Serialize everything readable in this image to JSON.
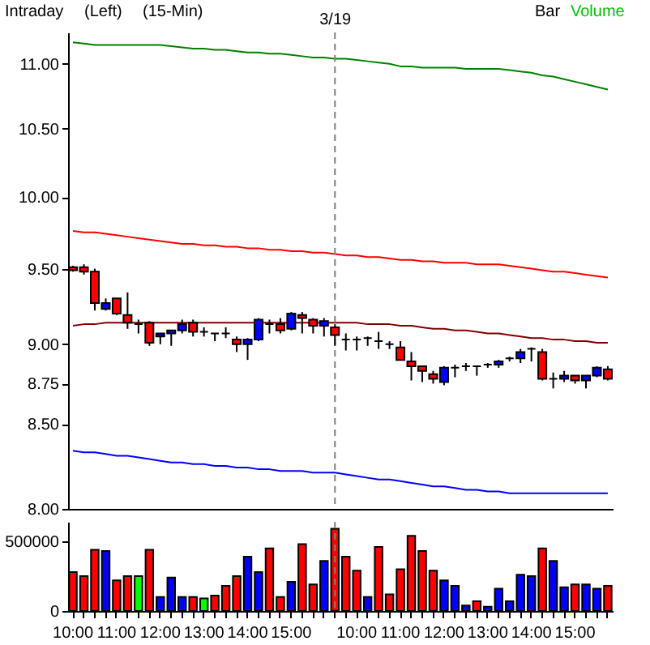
{
  "chart_data": [
    {
      "type": "candlestick",
      "log": true,
      "tick_labels": "y",
      "categories": [
        "10:00",
        null,
        null,
        null,
        "11:00",
        null,
        null,
        null,
        "12:00",
        null,
        null,
        null,
        "13:00",
        null,
        null,
        null,
        "14:00",
        null,
        null,
        null,
        "15:00",
        null,
        null,
        null,
        "3/19",
        null,
        "10:00",
        null,
        null,
        null,
        "11:00",
        null,
        null,
        null,
        "12:00",
        null,
        null,
        null,
        "13:00",
        null,
        null,
        null,
        "14:00",
        null,
        null,
        null,
        "15:00",
        null,
        null,
        null
      ],
      "ohlc": [
        [
          9.51,
          9.52,
          9.48,
          9.49
        ],
        [
          9.51,
          9.53,
          9.46,
          9.48
        ],
        [
          9.48,
          9.5,
          9.22,
          9.27
        ],
        [
          9.23,
          9.3,
          9.22,
          9.27
        ],
        [
          9.3,
          9.3,
          9.19,
          9.2
        ],
        [
          9.19,
          9.34,
          9.1,
          9.14
        ],
        [
          9.13,
          9.16,
          9.07,
          9.13
        ],
        [
          9.14,
          9.15,
          8.99,
          9.01
        ],
        [
          9.05,
          9.07,
          9.0,
          9.07
        ],
        [
          9.07,
          9.09,
          8.99,
          9.09
        ],
        [
          9.09,
          9.16,
          9.07,
          9.13
        ],
        [
          9.14,
          9.16,
          9.05,
          9.08
        ],
        [
          9.08,
          9.11,
          9.05,
          9.08
        ],
        [
          9.07,
          9.07,
          9.02,
          9.07
        ],
        [
          9.07,
          9.11,
          9.04,
          9.07
        ],
        [
          9.03,
          9.05,
          8.95,
          9.0
        ],
        [
          9.0,
          9.04,
          8.9,
          9.03
        ],
        [
          9.03,
          9.17,
          9.02,
          9.16
        ],
        [
          9.13,
          9.16,
          9.07,
          9.13
        ],
        [
          9.13,
          9.17,
          9.07,
          9.09
        ],
        [
          9.1,
          9.21,
          9.09,
          9.2
        ],
        [
          9.19,
          9.21,
          9.07,
          9.17
        ],
        [
          9.16,
          9.17,
          9.07,
          9.12
        ],
        [
          9.12,
          9.17,
          9.05,
          9.15
        ],
        [
          9.11,
          9.13,
          8.99,
          9.06
        ],
        [
          9.03,
          9.07,
          8.96,
          9.03
        ],
        [
          9.03,
          9.05,
          8.96,
          9.03
        ],
        [
          9.04,
          9.05,
          8.99,
          9.04
        ],
        [
          9.02,
          9.08,
          8.97,
          9.02
        ],
        [
          9.0,
          9.02,
          8.97,
          9.0
        ],
        [
          8.98,
          9.02,
          8.9,
          8.9
        ],
        [
          8.89,
          8.95,
          8.77,
          8.86
        ],
        [
          8.86,
          8.86,
          8.76,
          8.83
        ],
        [
          8.81,
          8.83,
          8.75,
          8.78
        ],
        [
          8.76,
          8.86,
          8.74,
          8.85
        ],
        [
          8.85,
          8.87,
          8.79,
          8.85
        ],
        [
          8.86,
          8.88,
          8.83,
          8.86
        ],
        [
          8.86,
          8.86,
          8.8,
          8.86
        ],
        [
          8.87,
          8.88,
          8.85,
          8.87
        ],
        [
          8.87,
          8.9,
          8.85,
          8.89
        ],
        [
          8.91,
          8.92,
          8.89,
          8.91
        ],
        [
          8.91,
          8.97,
          8.88,
          8.95
        ],
        [
          8.97,
          8.98,
          8.89,
          8.97
        ],
        [
          8.95,
          8.97,
          8.77,
          8.78
        ],
        [
          8.78,
          8.82,
          8.72,
          8.78
        ],
        [
          8.78,
          8.83,
          8.76,
          8.8
        ],
        [
          8.8,
          8.8,
          8.75,
          8.77
        ],
        [
          8.77,
          8.8,
          8.72,
          8.8
        ],
        [
          8.8,
          8.86,
          8.79,
          8.85
        ],
        [
          8.84,
          8.86,
          8.77,
          8.78
        ]
      ],
      "colors": [
        "#ff0000",
        "#ff0000",
        "#ff0000",
        "#0000ff",
        "#ff0000",
        "#ff0000",
        "#000000",
        "#ff0000",
        "#0000ff",
        "#0000ff",
        "#0000ff",
        "#ff0000",
        "#000000",
        "#000000",
        "#000000",
        "#ff0000",
        "#0000ff",
        "#0000ff",
        "#000000",
        "#ff0000",
        "#0000ff",
        "#ff0000",
        "#ff0000",
        "#0000ff",
        "#ff0000",
        "#000000",
        "#000000",
        "#000000",
        "#000000",
        "#000000",
        "#ff0000",
        "#ff0000",
        "#ff0000",
        "#ff0000",
        "#0000ff",
        "#000000",
        "#000000",
        "#000000",
        "#000000",
        "#0000ff",
        "#000000",
        "#0000ff",
        "#000000",
        "#ff0000",
        "#000000",
        "#0000ff",
        "#ff0000",
        "#0000ff",
        "#0000ff",
        "#ff0000"
      ],
      "series": [
        {
          "type": "line",
          "color": "#008000",
          "values": [
            11.17,
            11.16,
            11.15,
            11.15,
            11.15,
            11.15,
            11.15,
            11.15,
            11.15,
            11.14,
            11.13,
            11.12,
            11.12,
            11.11,
            11.11,
            11.1,
            11.09,
            11.09,
            11.08,
            11.08,
            11.07,
            11.06,
            11.05,
            11.05,
            11.04,
            11.04,
            11.03,
            11.02,
            11.01,
            11.0,
            10.98,
            10.98,
            10.97,
            10.97,
            10.97,
            10.97,
            10.96,
            10.96,
            10.96,
            10.96,
            10.95,
            10.94,
            10.93,
            10.91,
            10.9,
            10.88,
            10.86,
            10.84,
            10.82,
            10.8
          ]
        },
        {
          "type": "line",
          "color": "#ff0000",
          "values": [
            9.76,
            9.75,
            9.75,
            9.74,
            9.73,
            9.72,
            9.71,
            9.7,
            9.69,
            9.68,
            9.67,
            9.67,
            9.66,
            9.66,
            9.65,
            9.65,
            9.64,
            9.64,
            9.63,
            9.63,
            9.62,
            9.62,
            9.61,
            9.61,
            9.6,
            9.59,
            9.59,
            9.58,
            9.58,
            9.57,
            9.56,
            9.56,
            9.55,
            9.55,
            9.54,
            9.54,
            9.54,
            9.53,
            9.53,
            9.53,
            9.52,
            9.51,
            9.5,
            9.49,
            9.48,
            9.48,
            9.47,
            9.46,
            9.45,
            9.44
          ]
        },
        {
          "type": "line",
          "color": "#800000",
          "values": [
            9.12,
            9.13,
            9.13,
            9.14,
            9.14,
            9.14,
            9.14,
            9.14,
            9.14,
            9.14,
            9.14,
            9.14,
            9.14,
            9.14,
            9.14,
            9.14,
            9.14,
            9.14,
            9.14,
            9.14,
            9.14,
            9.14,
            9.14,
            9.14,
            9.14,
            9.14,
            9.14,
            9.13,
            9.13,
            9.13,
            9.12,
            9.12,
            9.11,
            9.1,
            9.1,
            9.09,
            9.09,
            9.08,
            9.07,
            9.07,
            9.06,
            9.05,
            9.04,
            9.04,
            9.03,
            9.03,
            9.02,
            9.02,
            9.01,
            9.01
          ]
        },
        {
          "type": "line",
          "color": "#0000ff",
          "values": [
            8.34,
            8.33,
            8.33,
            8.32,
            8.31,
            8.31,
            8.3,
            8.29,
            8.28,
            8.27,
            8.27,
            8.26,
            8.26,
            8.25,
            8.25,
            8.24,
            8.24,
            8.23,
            8.23,
            8.22,
            8.22,
            8.22,
            8.21,
            8.21,
            8.21,
            8.2,
            8.19,
            8.18,
            8.17,
            8.17,
            8.16,
            8.15,
            8.14,
            8.13,
            8.13,
            8.12,
            8.11,
            8.11,
            8.1,
            8.1,
            8.09,
            8.09,
            8.09,
            8.09,
            8.09,
            8.09,
            8.09,
            8.09,
            8.09,
            8.09
          ]
        }
      ],
      "ylim": [
        8,
        11.25
      ],
      "yticks": [
        {
          "value": 8,
          "label": "8.00"
        },
        {
          "value": 8.5,
          "label": "8.50"
        },
        {
          "value": 8.75,
          "label": "8.75"
        },
        {
          "value": 9,
          "label": "9.00"
        },
        {
          "value": 9.5,
          "label": "9.50"
        },
        {
          "value": 10,
          "label": "10.00"
        },
        {
          "value": 10.5,
          "label": "10.50"
        },
        {
          "value": 11,
          "label": "11.00"
        }
      ],
      "ref_lines": [
        {
          "axis": "x",
          "value": "3/19",
          "label": "3/19",
          "line_style": "dashed",
          "color": "#808080"
        }
      ],
      "annotations": [
        "Intraday",
        "(Left)",
        "(15-Min)",
        "Bar",
        "Volume"
      ]
    },
    {
      "type": "bar",
      "categories": [
        "10:00",
        null,
        null,
        null,
        "11:00",
        null,
        null,
        null,
        "12:00",
        null,
        null,
        null,
        "13:00",
        null,
        null,
        null,
        "14:00",
        null,
        null,
        null,
        "15:00",
        null,
        null,
        null,
        null,
        null,
        "10:00",
        null,
        null,
        null,
        "11:00",
        null,
        null,
        null,
        "12:00",
        null,
        null,
        null,
        "13:00",
        null,
        null,
        null,
        "14:00",
        null,
        null,
        null,
        "15:00",
        null,
        null,
        null
      ],
      "values": [
        280000,
        250000,
        440000,
        430000,
        220000,
        250000,
        250000,
        440000,
        100000,
        240000,
        100000,
        100000,
        90000,
        110000,
        180000,
        250000,
        390000,
        280000,
        450000,
        100000,
        210000,
        480000,
        190000,
        360000,
        590000,
        390000,
        290000,
        100000,
        460000,
        120000,
        300000,
        540000,
        430000,
        290000,
        220000,
        180000,
        40000,
        70000,
        30000,
        160000,
        70000,
        260000,
        250000,
        450000,
        360000,
        170000,
        190000,
        190000,
        160000,
        180000
      ],
      "colors": [
        "#ff0000",
        "#ff0000",
        "#ff0000",
        "#0000ff",
        "#ff0000",
        "#ff0000",
        "#00ff00",
        "#ff0000",
        "#0000ff",
        "#0000ff",
        "#0000ff",
        "#ff0000",
        "#00ff00",
        "#ff0000",
        "#ff0000",
        "#ff0000",
        "#0000ff",
        "#0000ff",
        "#ff0000",
        "#ff0000",
        "#0000ff",
        "#ff0000",
        "#ff0000",
        "#0000ff",
        "#ff0000",
        "#ff0000",
        "#ff0000",
        "#0000ff",
        "#ff0000",
        "#ff0000",
        "#ff0000",
        "#ff0000",
        "#ff0000",
        "#ff0000",
        "#0000ff",
        "#0000ff",
        "#0000ff",
        "#ff0000",
        "#0000ff",
        "#0000ff",
        "#0000ff",
        "#0000ff",
        "#0000ff",
        "#ff0000",
        "#0000ff",
        "#0000ff",
        "#ff0000",
        "#0000ff",
        "#0000ff",
        "#ff0000"
      ],
      "ylim": [
        0,
        640000
      ],
      "yticks": [
        0,
        500000
      ]
    }
  ]
}
